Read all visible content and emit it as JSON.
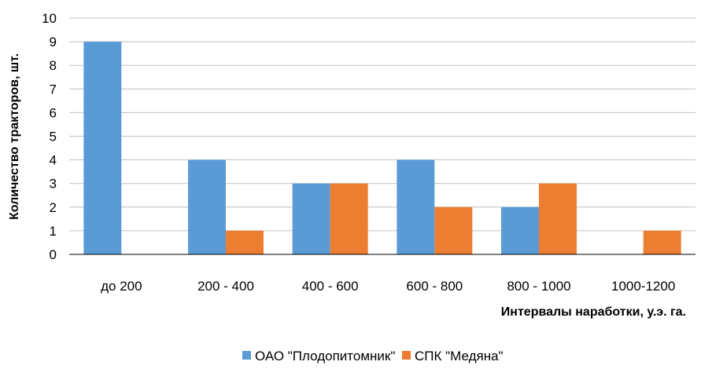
{
  "chart_data": {
    "type": "bar",
    "title": "",
    "xlabel": "Интервалы наработки, у.э. га.",
    "ylabel": "Количество тракторов, шт.",
    "categories": [
      "до 200",
      "200 - 400",
      "400 - 600",
      "600 - 800",
      "800 - 1000",
      "1000-1200"
    ],
    "series": [
      {
        "name": "ОАО \"Плодопитомник\"",
        "color": "#5B9BD5",
        "values": [
          9,
          4,
          3,
          4,
          2,
          0
        ]
      },
      {
        "name": "СПК \"Медяна\"",
        "color": "#ED7D31",
        "values": [
          0,
          1,
          3,
          2,
          3,
          1
        ]
      }
    ],
    "ylim": [
      0,
      10
    ],
    "yticks": [
      "0",
      "1",
      "2",
      "3",
      "4",
      "5",
      "6",
      "7",
      "8",
      "9",
      "10"
    ],
    "grid": true,
    "legend_position": "bottom"
  }
}
